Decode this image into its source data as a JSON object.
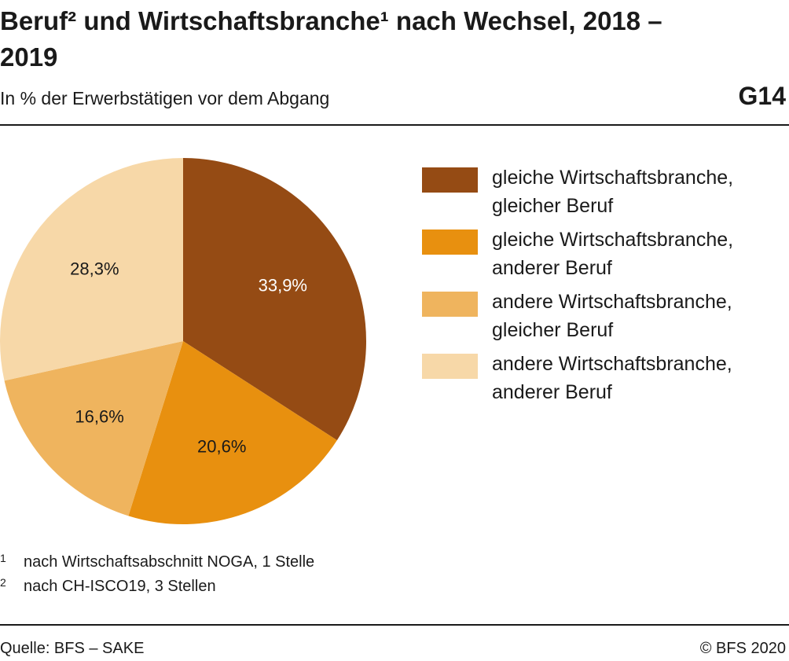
{
  "chart_data": {
    "type": "pie",
    "title": "Beruf² und Wirtschaftsbranche¹ nach Wechsel, 2018 – 2019",
    "subtitle": "In % der Erwerbstätigen vor dem Abgang",
    "chart_id": "G14",
    "categories": [
      "gleiche Wirtschaftsbranche, gleicher Beruf",
      "gleiche Wirtschaftsbranche, anderer Beruf",
      "andere Wirtschaftsbranche, gleicher Beruf",
      "andere Wirtschaftsbranche, anderer Beruf"
    ],
    "values": [
      33.9,
      20.6,
      16.6,
      28.3
    ],
    "value_labels": [
      "33,9%",
      "20,6%",
      "16,6%",
      "28,3%"
    ],
    "colors": [
      "#954b14",
      "#e8900f",
      "#efb45e",
      "#f7d8a8"
    ],
    "legend": "right",
    "footnotes": [
      {
        "marker": "1",
        "text": "nach Wirtschaftsabschnitt NOGA, 1 Stelle"
      },
      {
        "marker": "2",
        "text": "nach CH-ISCO19, 3 Stellen"
      }
    ],
    "source": "Quelle: BFS – SAKE",
    "copyright": "© BFS 2020"
  }
}
